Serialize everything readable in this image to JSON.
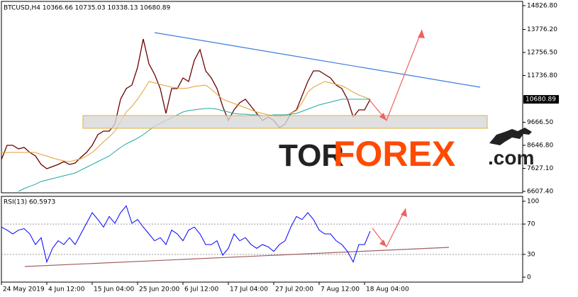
{
  "chart_data": [
    {
      "type": "line",
      "title": "BTCUSD,H4  10366.66 10735.03 10338.13 10680.89",
      "annotations": [
        "TOR",
        "FOREX",
        ".com"
      ],
      "categories": [
        "24 May 2019",
        null,
        null,
        null,
        null,
        null,
        null,
        null,
        "4 Jun 12:00",
        null,
        null,
        null,
        null,
        null,
        null,
        null,
        "15 Jun 04:00",
        null,
        null,
        null,
        null,
        null,
        null,
        null,
        "25 Jun 20:00",
        null,
        null,
        null,
        null,
        null,
        null,
        null,
        "6 Jul 12:00",
        null,
        null,
        null,
        null,
        null,
        null,
        null,
        "17 Jul 04:00",
        null,
        null,
        null,
        null,
        null,
        null,
        null,
        "27 Jul 20:00",
        null,
        null,
        null,
        null,
        null,
        null,
        null,
        "7 Aug 12:00",
        null,
        null,
        null,
        null,
        null,
        null,
        null,
        "18 Aug 04:00",
        null
      ],
      "series": [
        {
          "color": "#6b0000",
          "values": [
            8019,
            8647,
            8647,
            8490,
            8553,
            8333,
            8176,
            7800,
            7612,
            7706,
            7800,
            7925,
            7800,
            7863,
            8114,
            8333,
            8647,
            9117,
            9274,
            9274,
            9588,
            10686,
            11156,
            11313,
            12098,
            13352,
            12254,
            11784,
            11156,
            10058,
            11156,
            11156,
            11627,
            11470,
            12411,
            12882,
            11941,
            11627,
            11156,
            10372,
            9745,
            10215,
            10529,
            10686,
            10372,
            10058,
            9745,
            9902,
            9745,
            9431,
            9588,
            10058,
            10215,
            10843,
            11470,
            11941,
            11941,
            11784,
            11627,
            11313,
            11156,
            10686,
            9902,
            10215,
            10215,
            10681
          ]
        },
        {
          "color": "#e0a030",
          "values": [
            8333,
            8333,
            8333,
            8333,
            8333,
            8333,
            8333,
            8239,
            8176,
            8082,
            8019,
            7957,
            7925,
            7988,
            8051,
            8176,
            8333,
            8553,
            8804,
            9023,
            9274,
            9682,
            10121,
            10372,
            10686,
            11062,
            11470,
            11407,
            11345,
            11282,
            11219,
            11188,
            11156,
            11188,
            11250,
            11282,
            11313,
            11125,
            10905,
            10686,
            10592,
            10498,
            10404,
            10310,
            10215,
            10121,
            10058,
            9996,
            9964,
            9902,
            9964,
            10058,
            10184,
            10529,
            11000,
            11219,
            11345,
            11470,
            11407,
            11345,
            11282,
            11156,
            11000,
            10874,
            10780,
            10686
          ]
        },
        {
          "color": "#20a8a0",
          "values": [
            null,
            null,
            null,
            6608,
            6733,
            6828,
            6922,
            7047,
            7110,
            7173,
            7235,
            7298,
            7361,
            7424,
            7549,
            7674,
            7800,
            7925,
            8051,
            8176,
            8364,
            8553,
            8710,
            8835,
            8961,
            9117,
            9306,
            9494,
            9619,
            9745,
            9870,
            9996,
            10121,
            10184,
            10215,
            10247,
            10278,
            10278,
            10247,
            10184,
            10121,
            10058,
            10027,
            10027,
            9996,
            9996,
            9964,
            9964,
            9996,
            9996,
            9996,
            10027,
            10058,
            10153,
            10247,
            10341,
            10435,
            10498,
            10561,
            10623,
            10686,
            10686,
            10686,
            10686,
            10686,
            10686
          ]
        }
      ],
      "ylim": [
        6544.66,
        15015.02
      ],
      "yticks": [
        {
          "value": 14826.8,
          "label": "14826.80"
        },
        {
          "value": 13776.2,
          "label": "13776.20"
        },
        {
          "value": 12756.5,
          "label": "12756.50"
        },
        {
          "value": 11736.8,
          "label": "11736.80"
        },
        {
          "value": 9666.5,
          "label": "9666.50"
        },
        {
          "value": 8646.8,
          "label": "8646.80"
        },
        {
          "value": 7627.1,
          "label": "7627.10"
        },
        {
          "value": 6607.4,
          "label": "6607.40"
        }
      ],
      "last_price": {
        "value": 10680.89,
        "label": "10680.89"
      }
    },
    {
      "type": "line",
      "title": "RSI(13) 60.5973",
      "series": [
        {
          "color": "#0000ff",
          "values": [
            66,
            62,
            57,
            62,
            64,
            57,
            43,
            52,
            20,
            38,
            48,
            43,
            52,
            43,
            57,
            71,
            85,
            76,
            66,
            80,
            71,
            85,
            94,
            71,
            76,
            66,
            57,
            48,
            52,
            43,
            62,
            57,
            48,
            62,
            66,
            57,
            43,
            43,
            48,
            29,
            38,
            57,
            48,
            52,
            43,
            38,
            43,
            40,
            34,
            43,
            48,
            66,
            80,
            76,
            85,
            76,
            62,
            57,
            57,
            48,
            43,
            34,
            20,
            43,
            43,
            60.5973
          ]
        }
      ],
      "ylim": [
        -6.5,
        106.5
      ],
      "yticks": [
        100,
        70,
        30,
        0
      ]
    }
  ]
}
